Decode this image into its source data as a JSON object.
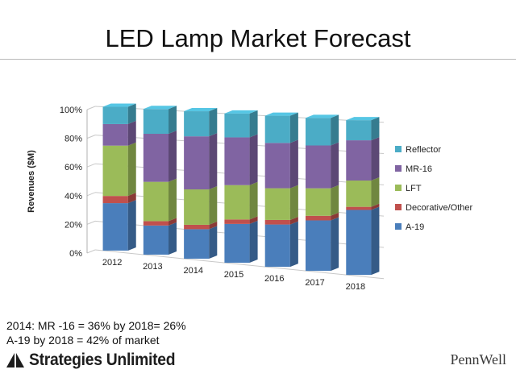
{
  "slide": {
    "title": "LED Lamp Market Forecast",
    "notes": [
      "2014: MR -16 = 36% by 2018= 26%",
      "A-19 by 2018 = 42% of market"
    ],
    "logo_left": "Strategies Unlimited",
    "logo_left_icon": "double-triangle-mark",
    "logo_right": "PennWell"
  },
  "chart_data": {
    "type": "bar",
    "stacked": true,
    "three_d": true,
    "categories": [
      "2012",
      "2013",
      "2014",
      "2015",
      "2016",
      "2017",
      "2018"
    ],
    "ylabel": "Revenues ($M)",
    "xlabel": "",
    "ylim": [
      0,
      100
    ],
    "yticks": [
      "0%",
      "20%",
      "40%",
      "60%",
      "80%",
      "100%"
    ],
    "legend_position": "right",
    "grid": true,
    "series": [
      {
        "name": "A-19",
        "color": "#4a7ebb",
        "values": [
          33,
          20,
          20,
          26,
          28,
          33,
          42
        ]
      },
      {
        "name": "Decorative/Other",
        "color": "#c0504d",
        "values": [
          5,
          3,
          3,
          3,
          3,
          3,
          2
        ]
      },
      {
        "name": "LFT",
        "color": "#9bbb59",
        "values": [
          35,
          27,
          24,
          23,
          21,
          18,
          17
        ]
      },
      {
        "name": "MR-16",
        "color": "#8064a2",
        "values": [
          15,
          33,
          36,
          32,
          30,
          28,
          26
        ]
      },
      {
        "name": "Reflector",
        "color": "#4bacc6",
        "values": [
          12,
          17,
          17,
          16,
          18,
          18,
          13
        ]
      }
    ]
  }
}
